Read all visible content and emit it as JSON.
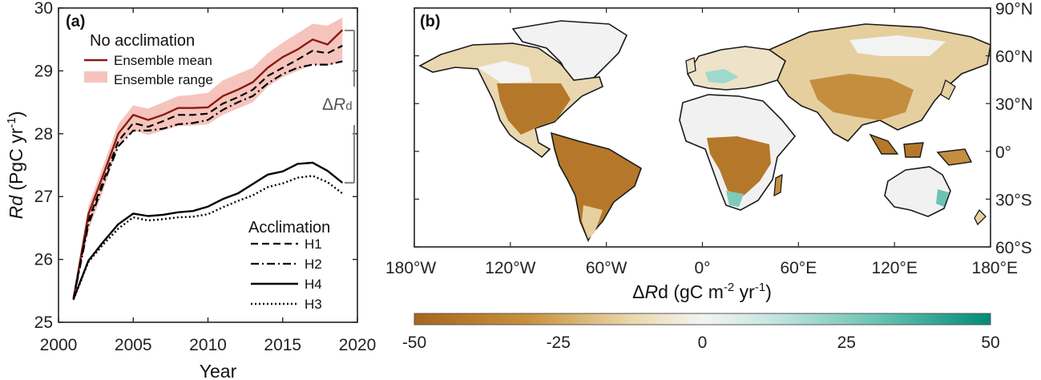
{
  "colors": {
    "ensemble_mean": "#8b1a10",
    "ensemble_range": "#f5c4bd",
    "acclimation_line": "#000000",
    "land_negative": "#b5782a",
    "land_neutral": "#f1f1f1",
    "land_positive": "#2a9d8f"
  },
  "chart_data": [
    {
      "panel": "(a)",
      "type": "line",
      "xlabel": "Year",
      "ylabel_italic": "Rd",
      "ylabel_rest": " (PgC yr",
      "ylabel_sup": "-1",
      "ylabel_close": ")",
      "xlim": [
        2000,
        2020
      ],
      "ylim": [
        25,
        30
      ],
      "xticks": [
        "2000",
        "2005",
        "2010",
        "2015",
        "2020"
      ],
      "yticks": [
        "25",
        "26",
        "27",
        "28",
        "29",
        "30"
      ],
      "x": [
        2001,
        2002,
        2003,
        2004,
        2005,
        2006,
        2007,
        2008,
        2009,
        2010,
        2011,
        2012,
        2013,
        2014,
        2015,
        2016,
        2017,
        2018,
        2019
      ],
      "no_acclimation_title": "No acclimation",
      "mean_label": "Ensemble mean",
      "range_label": "Ensemble range",
      "acclimation_title": "Acclimation",
      "delta_label_prefix": "Δ",
      "delta_label_main": "R",
      "delta_label_sub": "d",
      "series": [
        {
          "name": "Ensemble mean",
          "style": "solid-red",
          "values": [
            25.38,
            26.72,
            27.35,
            28.0,
            28.3,
            28.22,
            28.3,
            28.41,
            28.41,
            28.42,
            28.6,
            28.7,
            28.82,
            29.05,
            29.22,
            29.34,
            29.5,
            29.42,
            29.65
          ]
        },
        {
          "name": "Ensemble range upper",
          "style": "band-upper",
          "values": [
            25.45,
            26.85,
            27.5,
            28.15,
            28.45,
            28.4,
            28.5,
            28.6,
            28.62,
            28.65,
            28.85,
            28.95,
            29.05,
            29.28,
            29.45,
            29.6,
            29.75,
            29.72,
            29.85
          ]
        },
        {
          "name": "Ensemble range lower",
          "style": "band-lower",
          "values": [
            25.35,
            26.45,
            27.1,
            27.8,
            28.05,
            27.98,
            28.05,
            28.12,
            28.13,
            28.15,
            28.3,
            28.4,
            28.5,
            28.75,
            28.9,
            29.0,
            29.1,
            29.08,
            29.15
          ]
        },
        {
          "name": "H1",
          "style": "dashed",
          "values": [
            25.37,
            26.62,
            27.25,
            27.88,
            28.17,
            28.11,
            28.2,
            28.3,
            28.3,
            28.32,
            28.48,
            28.58,
            28.7,
            28.92,
            29.05,
            29.18,
            29.32,
            29.28,
            29.4
          ]
        },
        {
          "name": "H2",
          "style": "dashdot",
          "values": [
            25.36,
            26.55,
            27.2,
            27.8,
            28.05,
            28.05,
            28.08,
            28.15,
            28.17,
            28.22,
            28.38,
            28.5,
            28.6,
            28.8,
            28.95,
            29.05,
            29.1,
            29.1,
            29.15
          ]
        },
        {
          "name": "H4",
          "style": "solid",
          "values": [
            25.37,
            25.98,
            26.28,
            26.56,
            26.73,
            26.69,
            26.71,
            26.75,
            26.77,
            26.84,
            26.96,
            27.05,
            27.2,
            27.35,
            27.4,
            27.52,
            27.54,
            27.41,
            27.22
          ]
        },
        {
          "name": "H3",
          "style": "dotted",
          "values": [
            25.36,
            25.96,
            26.24,
            26.49,
            26.67,
            26.62,
            26.64,
            26.67,
            26.68,
            26.72,
            26.83,
            26.93,
            27.02,
            27.15,
            27.21,
            27.3,
            27.33,
            27.23,
            27.05
          ]
        }
      ],
      "legend_order": [
        "H1",
        "H2",
        "H4",
        "H3"
      ]
    },
    {
      "panel": "(b)",
      "type": "heatmap",
      "xlabel_prefix": "Δ",
      "xlabel_italic": "R",
      "xlabel_rest": "d (gC m",
      "xlabel_sup1": "-2",
      "xlabel_mid": " yr",
      "xlabel_sup2": "-1",
      "xlabel_close": ")",
      "lon_ticks": [
        "180°W",
        "120°W",
        "60°W",
        "0°",
        "60°E",
        "120°E",
        "180°E"
      ],
      "lat_ticks": [
        "90°N",
        "60°N",
        "30°N",
        "0°",
        "30°S",
        "60°S"
      ],
      "lon_range": [
        -180,
        180
      ],
      "lat_range": [
        -60,
        90
      ],
      "colorbar_range": [
        -50,
        50
      ],
      "colorbar_ticks": [
        "-50",
        "-25",
        "0",
        "25",
        "50"
      ],
      "regions": [
        {
          "name": "North America",
          "value": -35
        },
        {
          "name": "South America",
          "value": -45
        },
        {
          "name": "Africa",
          "value": -40
        },
        {
          "name": "Europe",
          "value": -5
        },
        {
          "name": "Asia",
          "value": -25
        },
        {
          "name": "Australia",
          "value": 2
        },
        {
          "name": "Greenland",
          "value": 0
        }
      ]
    }
  ]
}
